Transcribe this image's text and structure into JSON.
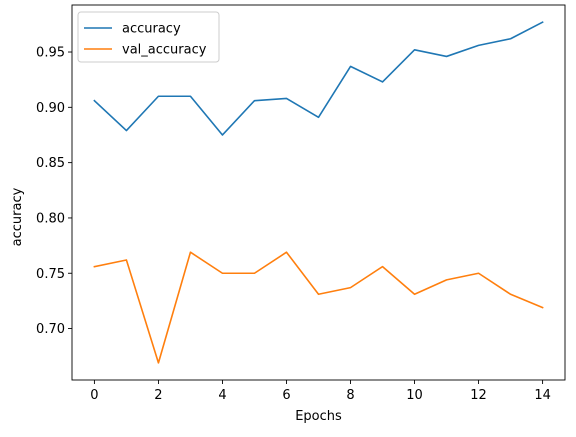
{
  "chart_data": {
    "type": "line",
    "title": "",
    "xlabel": "Epochs",
    "ylabel": "accuracy",
    "x": [
      0,
      1,
      2,
      3,
      4,
      5,
      6,
      7,
      8,
      9,
      10,
      11,
      12,
      13,
      14
    ],
    "series": [
      {
        "name": "accuracy",
        "color": "#1f77b4",
        "values": [
          0.906,
          0.879,
          0.91,
          0.91,
          0.875,
          0.906,
          0.908,
          0.891,
          0.937,
          0.923,
          0.952,
          0.946,
          0.956,
          0.962,
          0.977
        ]
      },
      {
        "name": "val_accuracy",
        "color": "#ff7f0e",
        "values": [
          0.756,
          0.762,
          0.669,
          0.769,
          0.75,
          0.75,
          0.769,
          0.731,
          0.737,
          0.756,
          0.731,
          0.744,
          0.75,
          0.731,
          0.719
        ]
      }
    ],
    "xlim": [
      -0.7,
      14.7
    ],
    "ylim": [
      0.6535,
      0.9925
    ],
    "x_ticks": [
      0,
      2,
      4,
      6,
      8,
      10,
      12,
      14
    ],
    "x_tick_labels": [
      "0",
      "2",
      "4",
      "6",
      "8",
      "10",
      "12",
      "14"
    ],
    "y_ticks": [
      0.7,
      0.75,
      0.8,
      0.85,
      0.9,
      0.95
    ],
    "y_tick_labels": [
      "0.70",
      "0.75",
      "0.80",
      "0.85",
      "0.90",
      "0.95"
    ],
    "grid": false,
    "legend_position": "top-left"
  }
}
